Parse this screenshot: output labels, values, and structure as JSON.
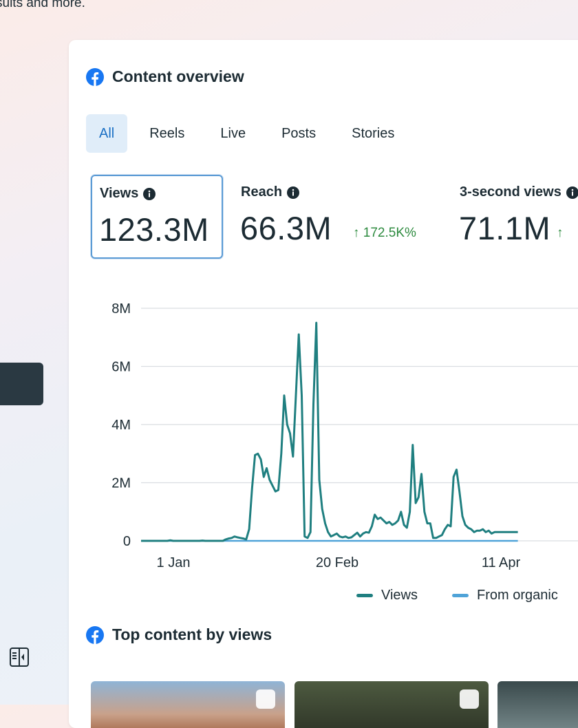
{
  "header": {
    "subtitle_fragment": "sults and more."
  },
  "overview": {
    "title": "Content overview",
    "tabs": [
      {
        "label": "All"
      },
      {
        "label": "Reels"
      },
      {
        "label": "Live"
      },
      {
        "label": "Posts"
      },
      {
        "label": "Stories"
      }
    ],
    "metrics": [
      {
        "label": "Views",
        "value": "123.3M",
        "change": ""
      },
      {
        "label": "Reach",
        "value": "66.3M",
        "change": "↑ 172.5K%"
      },
      {
        "label": "3-second views",
        "value": "71.1M",
        "change": "↑"
      }
    ]
  },
  "chart_data": {
    "type": "line",
    "yticks": [
      "8M",
      "6M",
      "4M",
      "2M",
      "0"
    ],
    "xticks": [
      "1 Jan",
      "20 Feb",
      "11 Apr"
    ],
    "ylim": [
      0,
      8000000
    ],
    "grid": true,
    "legend_placement": "bottom",
    "series": [
      {
        "name": "Views",
        "color": "#1f7f80",
        "x": [
          1,
          2,
          3,
          4,
          5,
          6,
          7,
          8,
          9,
          10,
          11,
          12,
          13,
          14,
          15,
          16,
          17,
          18,
          19,
          20,
          21,
          22,
          23,
          24,
          25,
          26,
          27,
          28,
          29,
          30,
          31,
          32,
          33,
          34,
          35,
          36,
          37,
          38,
          39,
          40,
          41,
          42,
          43,
          44,
          45,
          46,
          47,
          48,
          49,
          50,
          51,
          52,
          53,
          54,
          55,
          56,
          57,
          58,
          59,
          60,
          61,
          62,
          63,
          64,
          65,
          66,
          67,
          68,
          69,
          70,
          71,
          72,
          73,
          74,
          75,
          76,
          77,
          78,
          79,
          80,
          81,
          82,
          83,
          84,
          85,
          86,
          87,
          88,
          89,
          90,
          91,
          92,
          93,
          94,
          95,
          96,
          97,
          98,
          99,
          100,
          101,
          102,
          103,
          104,
          105,
          106,
          107,
          108,
          109,
          110,
          111,
          112,
          113,
          114,
          115,
          116,
          117,
          118,
          119,
          120,
          121,
          122,
          123,
          124,
          125,
          126,
          127,
          128,
          129,
          130
        ],
        "values": [
          0,
          0,
          0,
          0,
          0,
          0,
          0,
          0,
          0,
          0,
          20000,
          0,
          0,
          0,
          0,
          0,
          0,
          0,
          0,
          0,
          0,
          10000,
          0,
          0,
          0,
          0,
          0,
          0,
          0,
          50000,
          80000,
          100000,
          150000,
          120000,
          100000,
          80000,
          50000,
          400000,
          1800000,
          2950000,
          3000000,
          2800000,
          2200000,
          2500000,
          2100000,
          1900000,
          1700000,
          1750000,
          3000000,
          5000000,
          4000000,
          3700000,
          2900000,
          5000000,
          7100000,
          5000000,
          150000,
          100000,
          300000,
          4700000,
          7500000,
          2100000,
          1100000,
          600000,
          300000,
          150000,
          200000,
          250000,
          150000,
          120000,
          150000,
          100000,
          120000,
          200000,
          280000,
          150000,
          250000,
          300000,
          280000,
          500000,
          900000,
          750000,
          800000,
          700000,
          600000,
          650000,
          550000,
          600000,
          700000,
          1000000,
          550000,
          450000,
          1000000,
          3300000,
          1300000,
          1500000,
          2300000,
          1000000,
          600000,
          600000,
          100000,
          100000,
          150000,
          200000,
          400000,
          550000,
          500000,
          2200000,
          2450000,
          1700000,
          850000,
          550000,
          450000,
          400000,
          300000,
          350000,
          350000,
          400000,
          300000,
          350000,
          250000,
          300000,
          300000,
          300000,
          300000,
          300000,
          300000,
          300000,
          300000,
          300000
        ]
      },
      {
        "name": "From organic",
        "color": "#4fa3d8",
        "x": [
          1,
          130
        ],
        "values": [
          0,
          0
        ]
      }
    ]
  },
  "legend": {
    "views": "Views",
    "organic": "From organic"
  },
  "top_content": {
    "title": "Top content by views"
  }
}
